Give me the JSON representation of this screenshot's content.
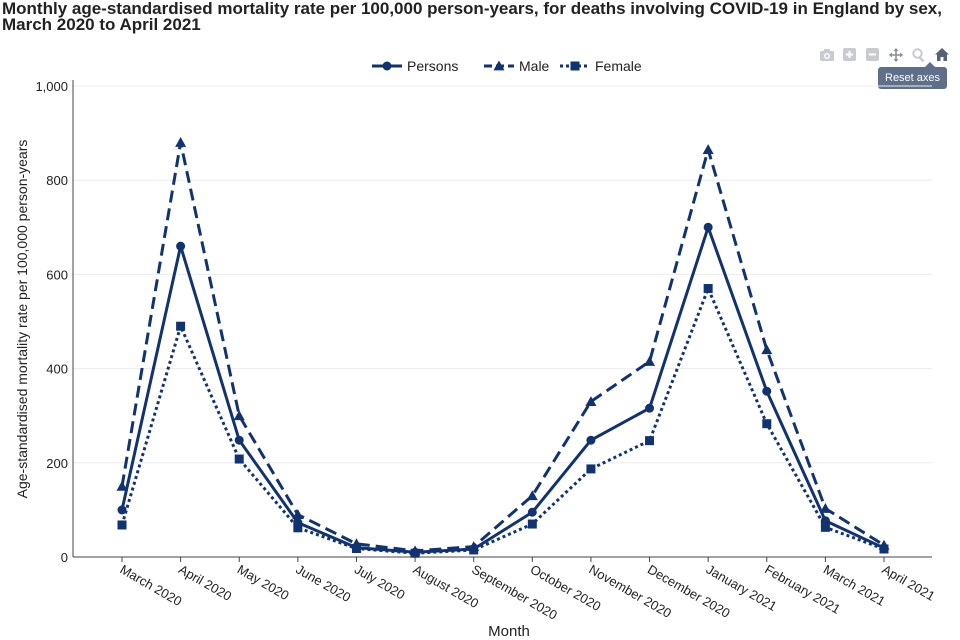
{
  "toolbar": {
    "tooltip": "Reset axes",
    "tools": [
      "camera-icon",
      "zoom-in-icon",
      "zoom-out-icon",
      "pan-icon",
      "autoscale-icon",
      "home-icon"
    ]
  },
  "chart_data": {
    "type": "line",
    "title": "Monthly age-standardised mortality rate per 100,000 person-years, for deaths involving COVID-19 in England by sex, March 2020 to April 2021",
    "xlabel": "Month",
    "ylabel": "Age-standardised mortality rate per 100,000 person-years",
    "ylim": [
      0,
      1000
    ],
    "yticks": [
      0,
      200,
      400,
      600,
      800,
      1000
    ],
    "ytick_labels": [
      "0",
      "200",
      "400",
      "600",
      "800",
      "1,000"
    ],
    "grid": true,
    "legend_position": "top-center",
    "categories": [
      "March 2020",
      "April 2020",
      "May 2020",
      "June 2020",
      "July 2020",
      "August 2020",
      "September 2020",
      "October 2020",
      "November 2020",
      "December 2020",
      "January 2021",
      "February 2021",
      "March 2021",
      "April 2021"
    ],
    "series": [
      {
        "name": "Persons",
        "color": "#12336e",
        "dash": "solid",
        "marker": "circle",
        "values": [
          100,
          660,
          248,
          73,
          20,
          10,
          17,
          95,
          248,
          316,
          700,
          352,
          77,
          19
        ]
      },
      {
        "name": "Male",
        "color": "#12336e",
        "dash": "dashed",
        "marker": "triangle",
        "values": [
          150,
          880,
          300,
          90,
          28,
          13,
          22,
          130,
          330,
          415,
          865,
          440,
          103,
          25
        ]
      },
      {
        "name": "Female",
        "color": "#12336e",
        "dash": "dotted",
        "marker": "square",
        "values": [
          68,
          490,
          208,
          62,
          18,
          8,
          15,
          70,
          187,
          247,
          570,
          283,
          63,
          17
        ]
      }
    ]
  }
}
